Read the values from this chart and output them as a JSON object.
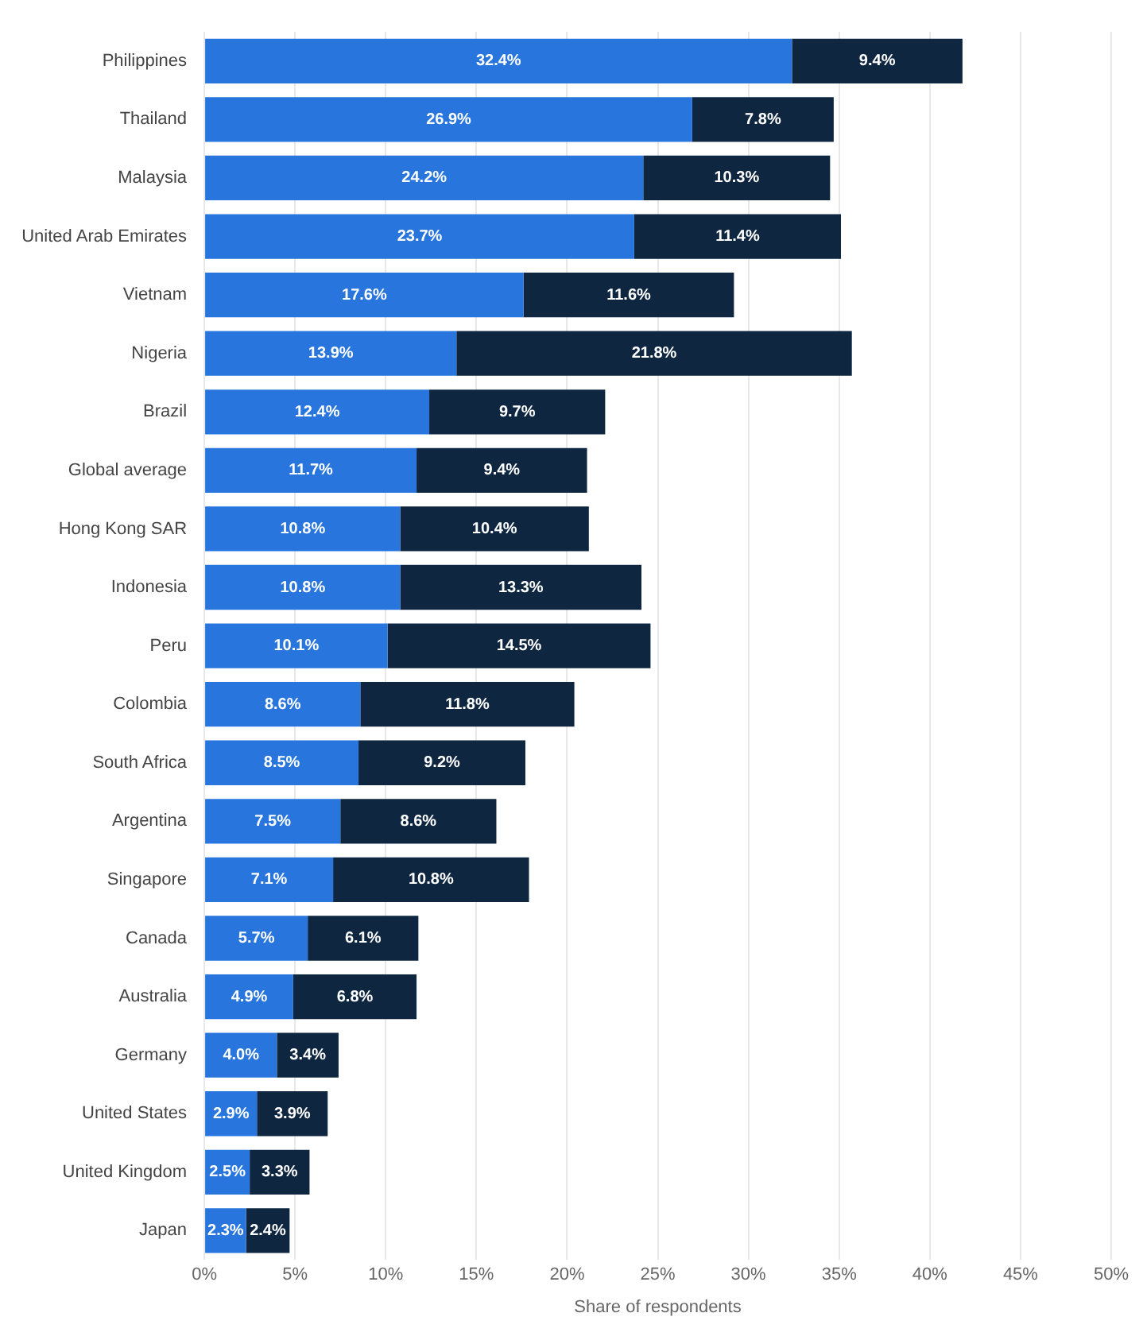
{
  "chart_data": {
    "type": "bar",
    "orientation": "horizontal",
    "stacked": true,
    "grid": "x",
    "legend": false,
    "xlabel": "Share of respondents",
    "categories": [
      "Philippines",
      "Thailand",
      "Malaysia",
      "United Arab Emirates",
      "Vietnam",
      "Nigeria",
      "Brazil",
      "Global average",
      "Hong Kong SAR",
      "Indonesia",
      "Peru",
      "Colombia",
      "South Africa",
      "Argentina",
      "Singapore",
      "Canada",
      "Australia",
      "Germany",
      "United States",
      "United Kingdom",
      "Japan"
    ],
    "xlim": [
      0,
      50
    ],
    "xticks": [
      {
        "value": 0,
        "label": "0%"
      },
      {
        "value": 5,
        "label": "5%"
      },
      {
        "value": 10,
        "label": "10%"
      },
      {
        "value": 15,
        "label": "15%"
      },
      {
        "value": 20,
        "label": "20%"
      },
      {
        "value": 25,
        "label": "25%"
      },
      {
        "value": 30,
        "label": "30%"
      },
      {
        "value": 35,
        "label": "35%"
      },
      {
        "value": 40,
        "label": "40%"
      },
      {
        "value": 45,
        "label": "45%"
      },
      {
        "value": 50,
        "label": "50%"
      }
    ],
    "series": [
      {
        "color": "#2876dd",
        "values": [
          32.4,
          26.9,
          24.2,
          23.7,
          17.6,
          13.9,
          12.4,
          11.7,
          10.8,
          10.8,
          10.1,
          8.6,
          8.5,
          7.5,
          7.1,
          5.7,
          4.9,
          4.0,
          2.9,
          2.5,
          2.3
        ],
        "value_labels": [
          "32.4%",
          "26.9%",
          "24.2%",
          "23.7%",
          "17.6%",
          "13.9%",
          "12.4%",
          "11.7%",
          "10.8%",
          "10.8%",
          "10.1%",
          "8.6%",
          "8.5%",
          "7.5%",
          "7.1%",
          "5.7%",
          "4.9%",
          "4.0%",
          "2.9%",
          "2.5%",
          "2.3%"
        ]
      },
      {
        "color": "#0e2640",
        "values": [
          9.4,
          7.8,
          10.3,
          11.4,
          11.6,
          21.8,
          9.7,
          9.4,
          10.4,
          13.3,
          14.5,
          11.8,
          9.2,
          8.6,
          10.8,
          6.1,
          6.8,
          3.4,
          3.9,
          3.3,
          2.4
        ],
        "value_labels": [
          "9.4%",
          "7.8%",
          "10.3%",
          "11.4%",
          "11.6%",
          "21.8%",
          "9.7%",
          "9.4%",
          "10.4%",
          "13.3%",
          "14.5%",
          "11.8%",
          "9.2%",
          "8.6%",
          "10.8%",
          "6.1%",
          "6.8%",
          "3.4%",
          "3.9%",
          "3.3%",
          "2.4%"
        ]
      }
    ]
  }
}
